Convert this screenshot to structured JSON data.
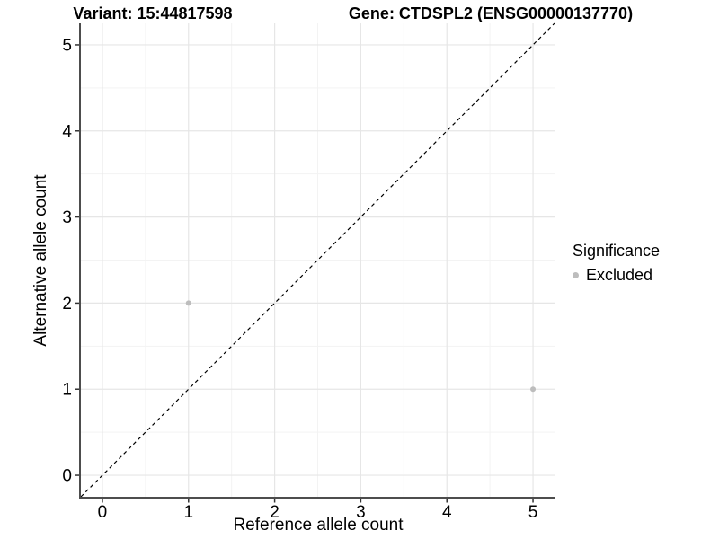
{
  "header": {
    "variant_title": "Variant: 15:44817598",
    "gene_title": "Gene: CTDSPL2 (ENSG00000137770)"
  },
  "chart_data": {
    "type": "scatter",
    "title": "Variant: 15:44817598   Gene: CTDSPL2 (ENSG00000137770)",
    "xlabel": "Reference allele count",
    "ylabel": "Alternative allele count",
    "xlim": [
      -0.25,
      5.25
    ],
    "ylim": [
      -0.25,
      5.25
    ],
    "x_ticks": [
      0,
      1,
      2,
      3,
      4,
      5
    ],
    "y_ticks": [
      0,
      1,
      2,
      3,
      4,
      5
    ],
    "grid": {
      "major": true,
      "minor": true
    },
    "reference_line": {
      "kind": "identity",
      "style": "dashed",
      "from": [
        -0.25,
        -0.25
      ],
      "to": [
        5.25,
        5.25
      ]
    },
    "series": [
      {
        "name": "Excluded",
        "color": "#bdbdbd",
        "points": [
          {
            "x": 1,
            "y": 2
          },
          {
            "x": 5,
            "y": 1
          }
        ]
      }
    ],
    "legend": {
      "title": "Significance",
      "position": "right",
      "items": [
        {
          "label": "Excluded",
          "color": "#bdbdbd"
        }
      ]
    },
    "colors": {
      "background": "#ffffff",
      "point": "#bdbdbd",
      "axis_line": "#4d4d4d",
      "tick_mark": "#333333",
      "grid_major": "#e6e6e6",
      "grid_minor": "#f3f3f3",
      "reference_line": "#000000",
      "text": "#000000"
    }
  }
}
